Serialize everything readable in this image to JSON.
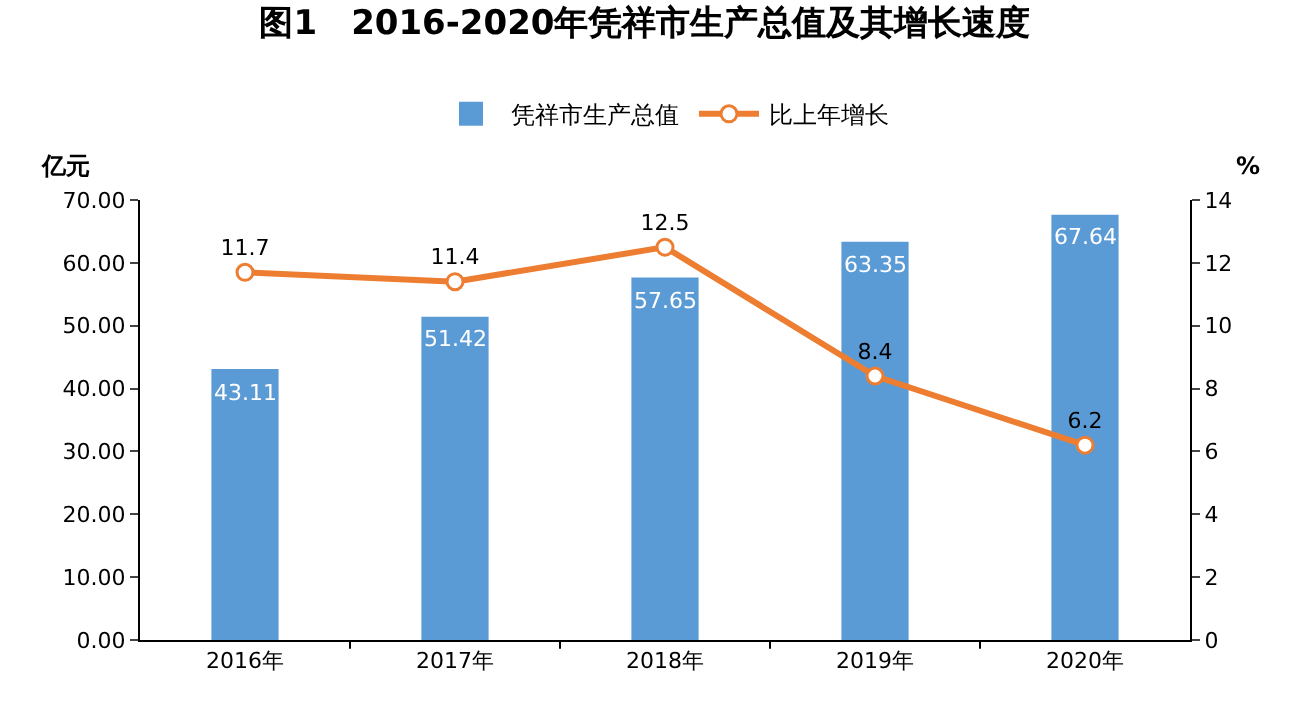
{
  "chart_data": {
    "type": "bar",
    "title": "图1　2016-2020年凭祥市生产总值及其增长速度",
    "ylabel": "亿元",
    "y2label": "%",
    "categories": [
      "2016年",
      "2017年",
      "2018年",
      "2019年",
      "2020年"
    ],
    "series": [
      {
        "name": "凭祥市生产总值",
        "color": "#5b9bd5",
        "values": [
          43.11,
          51.42,
          57.65,
          63.35,
          67.64
        ]
      },
      {
        "name": "比上年增长",
        "type": "line",
        "axis": "y2",
        "color": "#ed7d31",
        "marker": "circle",
        "values": [
          11.7,
          11.4,
          12.5,
          8.4,
          6.2
        ]
      }
    ],
    "ylim": [
      0,
      70
    ],
    "yticks": [
      {
        "value": 0,
        "label": "0.00"
      },
      {
        "value": 10,
        "label": "10.00"
      },
      {
        "value": 20,
        "label": "20.00"
      },
      {
        "value": 30,
        "label": "30.00"
      },
      {
        "value": 40,
        "label": "40.00"
      },
      {
        "value": 50,
        "label": "50.00"
      },
      {
        "value": 60,
        "label": "60.00"
      },
      {
        "value": 70,
        "label": "70.00"
      }
    ],
    "y2lim": [
      0,
      14
    ],
    "y2ticks": [
      0,
      2,
      4,
      6,
      8,
      10,
      12,
      14
    ],
    "data_labels": true,
    "grid": false,
    "legend": "top"
  }
}
